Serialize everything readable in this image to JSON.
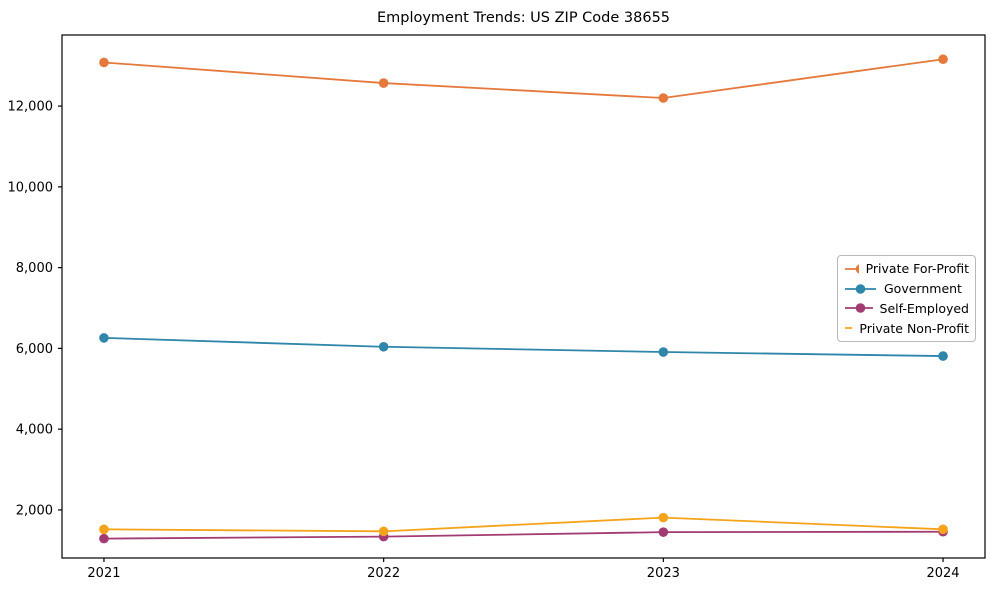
{
  "title": "Employment Trends: US ZIP Code 38655",
  "chart_data": {
    "type": "line",
    "title": "Employment Trends: US ZIP Code 38655",
    "x": [
      2021,
      2022,
      2023,
      2024
    ],
    "xtick_labels": [
      "2021",
      "2022",
      "2023",
      "2024"
    ],
    "yticks": [
      2000,
      4000,
      6000,
      8000,
      10000,
      12000
    ],
    "ytick_labels": [
      "2,000",
      "4,000",
      "6,000",
      "8,000",
      "10,000",
      "12,000"
    ],
    "xlim": [
      2020.85,
      2024.15
    ],
    "ylim": [
      810,
      13760
    ],
    "grid": false,
    "legend_position": "center right",
    "marker": "circle",
    "xlabel": "",
    "ylabel": "",
    "series": [
      {
        "name": "Private For-Profit",
        "color": "#E5793C",
        "values": [
          13080,
          12570,
          12200,
          13160
        ]
      },
      {
        "name": "Government",
        "color": "#2E86AB",
        "values": [
          6260,
          6040,
          5910,
          5810
        ]
      },
      {
        "name": "Self-Employed",
        "color": "#A23B72",
        "values": [
          1290,
          1340,
          1450,
          1460
        ]
      },
      {
        "name": "Private Non-Profit",
        "color": "#F5A31B",
        "values": [
          1520,
          1470,
          1810,
          1520
        ]
      }
    ],
    "axis_color": "#000000"
  }
}
